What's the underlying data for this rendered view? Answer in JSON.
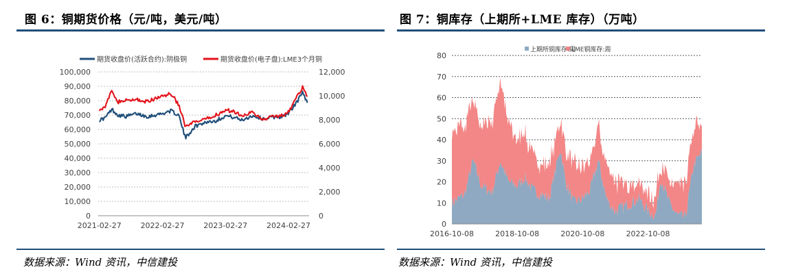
{
  "left_panel": {
    "title": "图 6：铜期货价格（元/吨，美元/吨）",
    "source": "数据来源：Wind 资讯，中信建投"
  },
  "right_panel": {
    "title": "图 7：铜库存（上期所+LME 库存）（万吨）",
    "source": "数据来源：Wind 资讯，中信建投"
  },
  "chart_data": [
    {
      "type": "line",
      "title": "",
      "series": [
        {
          "name": "期货收盘价(活跃合约):阴极铜",
          "color": "#1f4e79",
          "axis": "left",
          "x": [
            "2021-02-27",
            "2021-04-01",
            "2021-05-10",
            "2021-06-15",
            "2021-08-01",
            "2021-10-01",
            "2021-12-01",
            "2022-02-27",
            "2022-04-15",
            "2022-06-01",
            "2022-07-10",
            "2022-09-01",
            "2022-11-01",
            "2023-01-01",
            "2023-02-27",
            "2023-04-15",
            "2023-06-01",
            "2023-08-01",
            "2023-10-01",
            "2023-12-01",
            "2024-02-01",
            "2024-03-15",
            "2024-04-20",
            "2024-05-20",
            "2024-06-15"
          ],
          "values": [
            66500,
            68000,
            74000,
            70000,
            69000,
            71000,
            69000,
            71000,
            73000,
            70000,
            54000,
            62000,
            65000,
            66000,
            69500,
            68500,
            66500,
            69500,
            67500,
            68500,
            69000,
            73500,
            80000,
            86000,
            79000
          ]
        },
        {
          "name": "期货收盘价(电子盘):LME3个月铜",
          "color": "#e3121b",
          "axis": "right",
          "x": [
            "2021-02-27",
            "2021-04-01",
            "2021-05-10",
            "2021-06-15",
            "2021-08-01",
            "2021-10-01",
            "2021-12-01",
            "2022-02-27",
            "2022-04-15",
            "2022-06-01",
            "2022-07-10",
            "2022-09-01",
            "2022-11-01",
            "2023-01-01",
            "2023-02-27",
            "2023-04-15",
            "2023-06-01",
            "2023-08-01",
            "2023-10-01",
            "2023-12-01",
            "2024-02-01",
            "2024-03-15",
            "2024-04-20",
            "2024-05-20",
            "2024-06-15"
          ],
          "values": [
            8900,
            9100,
            10400,
            9500,
            9600,
            9700,
            9500,
            10000,
            10200,
            9300,
            7400,
            7800,
            8000,
            8400,
            8800,
            8700,
            8400,
            8600,
            8000,
            8300,
            8400,
            9000,
            10000,
            10800,
            9800
          ]
        }
      ],
      "x_ticks": [
        "2021-02-27",
        "2022-02-27",
        "2023-02-27",
        "2024-02-27"
      ],
      "y_left": {
        "ticks": [
          "0",
          "10,000",
          "20,000",
          "30,000",
          "40,000",
          "50,000",
          "60,000",
          "70,000",
          "80,000",
          "90,000",
          "100,000"
        ],
        "range": [
          0,
          100000
        ]
      },
      "y_right": {
        "ticks": [
          "0",
          "2,000",
          "4,000",
          "6,000",
          "8,000",
          "10,000",
          "12,000"
        ],
        "range": [
          0,
          12000
        ]
      },
      "grid": "horizontal dashed",
      "legend": "top"
    },
    {
      "type": "area",
      "title": "",
      "stacked": true,
      "x": [
        "2016-10-08",
        "2017-03-01",
        "2017-06-01",
        "2017-09-01",
        "2018-01-01",
        "2018-04-01",
        "2018-07-01",
        "2018-10-08",
        "2019-01-01",
        "2019-04-01",
        "2019-07-01",
        "2019-10-01",
        "2020-02-01",
        "2020-04-01",
        "2020-07-01",
        "2020-10-08",
        "2021-01-01",
        "2021-04-01",
        "2021-07-01",
        "2021-10-01",
        "2022-01-01",
        "2022-04-01",
        "2022-07-01",
        "2022-10-08",
        "2023-01-01",
        "2023-03-01",
        "2023-06-01",
        "2023-09-01",
        "2023-12-01",
        "2024-03-01",
        "2024-06-01"
      ],
      "series": [
        {
          "name": "上期所铜库存:周",
          "color": "#8ea9c1",
          "values": [
            10,
            14,
            30,
            18,
            15,
            30,
            20,
            18,
            22,
            16,
            14,
            12,
            36,
            20,
            10,
            12,
            16,
            30,
            12,
            6,
            8,
            10,
            12,
            6,
            4,
            22,
            10,
            4,
            3,
            28,
            34
          ]
        },
        {
          "name": "LME铜库存:周",
          "color": "#f38686",
          "values": [
            36,
            32,
            30,
            28,
            34,
            38,
            28,
            22,
            20,
            18,
            14,
            16,
            14,
            14,
            18,
            14,
            12,
            18,
            14,
            14,
            10,
            10,
            8,
            8,
            8,
            8,
            10,
            12,
            16,
            18,
            14
          ]
        }
      ],
      "x_ticks": [
        "2016-10-08",
        "2018-10-08",
        "2020-10-08",
        "2022-10-08"
      ],
      "y_ticks": [
        "0",
        "10",
        "20",
        "30",
        "40",
        "50",
        "60",
        "70",
        "80"
      ],
      "ylim": [
        0,
        80
      ],
      "grid": "horizontal dashed",
      "legend": "top"
    }
  ]
}
